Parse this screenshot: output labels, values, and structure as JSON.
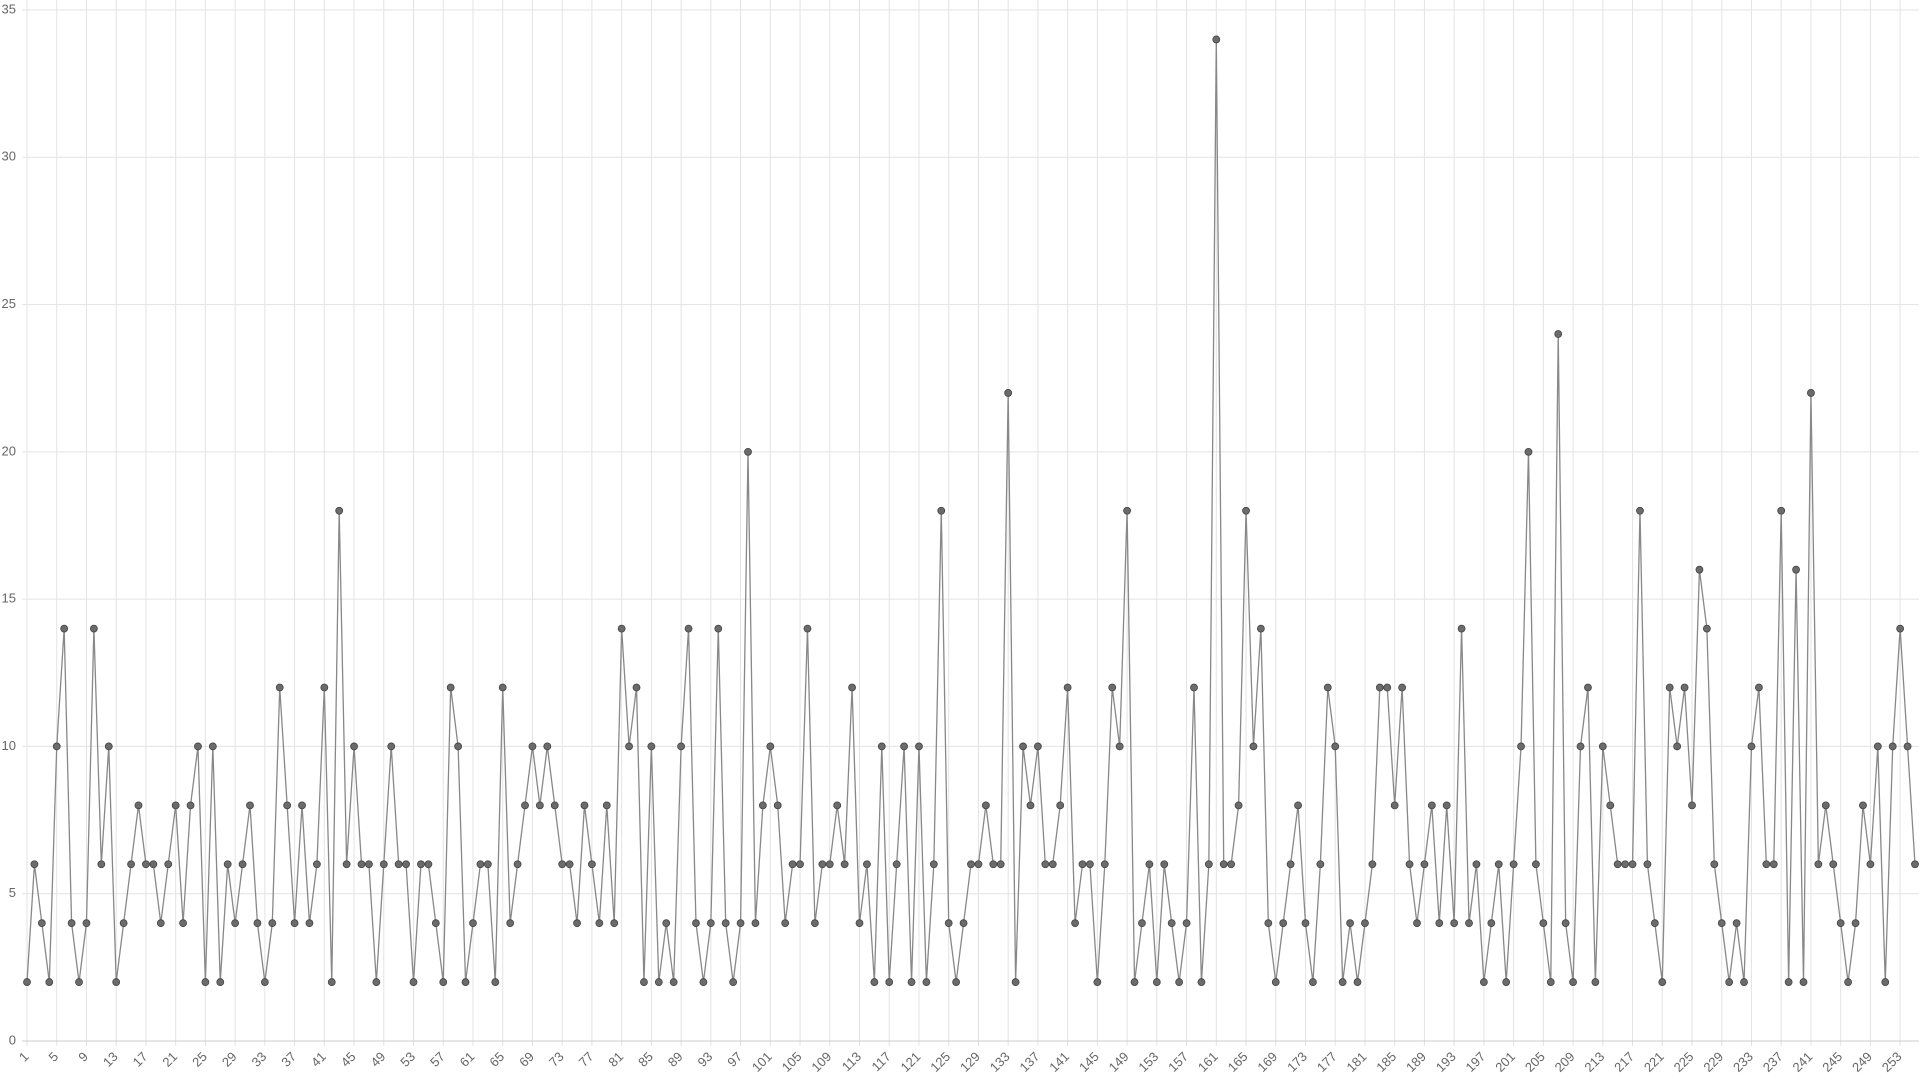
{
  "chart_data": {
    "type": "line",
    "categories": [
      "1",
      null,
      null,
      null,
      "5",
      null,
      null,
      null,
      "9",
      null,
      null,
      null,
      "13",
      null,
      null,
      null,
      "17",
      null,
      null,
      null,
      "21",
      null,
      null,
      null,
      "25",
      null,
      null,
      null,
      "29",
      null,
      null,
      null,
      "33",
      null,
      null,
      null,
      "37",
      null,
      null,
      null,
      "41",
      null,
      null,
      null,
      "45",
      null,
      null,
      null,
      "49",
      null,
      null,
      null,
      "53",
      null,
      null,
      null,
      "57",
      null,
      null,
      null,
      "61",
      null,
      null,
      null,
      "65",
      null,
      null,
      null,
      "69",
      null,
      null,
      null,
      "73",
      null,
      null,
      null,
      "77",
      null,
      null,
      null,
      "81",
      null,
      null,
      null,
      "85",
      null,
      null,
      null,
      "89",
      null,
      null,
      null,
      "93",
      null,
      null,
      null,
      "97",
      null,
      null,
      null,
      "101",
      null,
      null,
      null,
      "105",
      null,
      null,
      null,
      "109",
      null,
      null,
      null,
      "113",
      null,
      null,
      null,
      "117",
      null,
      null,
      null,
      "121",
      null,
      null,
      null,
      "125",
      null,
      null,
      null,
      "129",
      null,
      null,
      null,
      "133",
      null,
      null,
      null,
      "137",
      null,
      null,
      null,
      "141",
      null,
      null,
      null,
      "145",
      null,
      null,
      null,
      "149",
      null,
      null,
      null,
      "153",
      null,
      null,
      null,
      "157",
      null,
      null,
      null,
      "161",
      null,
      null,
      null,
      "165",
      null,
      null,
      null,
      "169",
      null,
      null,
      null,
      "173",
      null,
      null,
      null,
      "177",
      null,
      null,
      null,
      "181",
      null,
      null,
      null,
      "185",
      null,
      null,
      null,
      "189",
      null,
      null,
      null,
      "193",
      null,
      null,
      null,
      "197",
      null,
      null,
      null,
      "201",
      null,
      null,
      null,
      "205",
      null,
      null,
      null,
      "209",
      null,
      null,
      null,
      "213",
      null,
      null,
      null,
      "217",
      null,
      null,
      null,
      "221",
      null,
      null,
      null,
      "225",
      null,
      null,
      null,
      "229",
      null,
      null,
      null,
      "233",
      null,
      null,
      null,
      "237",
      null,
      null,
      null,
      "241",
      null,
      null,
      null,
      "245",
      null,
      null,
      null,
      "249",
      null,
      null,
      null,
      "253",
      null,
      null
    ],
    "values": [
      2,
      6,
      4,
      2,
      10,
      14,
      4,
      2,
      4,
      14,
      6,
      10,
      2,
      4,
      6,
      8,
      6,
      6,
      4,
      6,
      8,
      4,
      8,
      10,
      2,
      10,
      2,
      6,
      4,
      6,
      8,
      4,
      2,
      4,
      12,
      8,
      4,
      8,
      4,
      6,
      12,
      2,
      18,
      6,
      10,
      6,
      6,
      2,
      6,
      10,
      6,
      6,
      2,
      6,
      6,
      4,
      2,
      12,
      10,
      2,
      4,
      6,
      6,
      2,
      12,
      4,
      6,
      8,
      10,
      8,
      10,
      8,
      6,
      6,
      4,
      8,
      6,
      4,
      8,
      4,
      14,
      10,
      12,
      2,
      10,
      2,
      4,
      2,
      10,
      14,
      4,
      2,
      4,
      14,
      4,
      2,
      4,
      20,
      4,
      8,
      10,
      8,
      4,
      6,
      6,
      14,
      4,
      6,
      6,
      8,
      6,
      12,
      4,
      6,
      2,
      10,
      2,
      6,
      10,
      2,
      10,
      2,
      6,
      18,
      4,
      2,
      4,
      6,
      6,
      8,
      6,
      6,
      22,
      2,
      10,
      8,
      10,
      6,
      6,
      8,
      12,
      4,
      6,
      6,
      2,
      6,
      12,
      10,
      18,
      2,
      4,
      6,
      2,
      6,
      4,
      2,
      4,
      12,
      2,
      6,
      34,
      6,
      6,
      8,
      18,
      10,
      14,
      4,
      2,
      4,
      6,
      8,
      4,
      2,
      6,
      12,
      10,
      2,
      4,
      2,
      4,
      6,
      12,
      12,
      8,
      12,
      6,
      4,
      6,
      8,
      4,
      8,
      4,
      14,
      4,
      6,
      2,
      4,
      6,
      2,
      6,
      10,
      20,
      6,
      4,
      2,
      24,
      4,
      2,
      10,
      12,
      2,
      10,
      8,
      6,
      6,
      6,
      18,
      6,
      4,
      2,
      12,
      10,
      12,
      8,
      16,
      14,
      6,
      4,
      2,
      4,
      2,
      10,
      12,
      6,
      6,
      18,
      2,
      16,
      2,
      22,
      6,
      8,
      6,
      4,
      2,
      4,
      8,
      6,
      10,
      2,
      10,
      14,
      10,
      6
    ],
    "color": "#6b6b6b",
    "ylim": [
      0,
      35
    ],
    "yticks": [
      0,
      5,
      10,
      15,
      20,
      25,
      30,
      35
    ],
    "grid": true
  }
}
